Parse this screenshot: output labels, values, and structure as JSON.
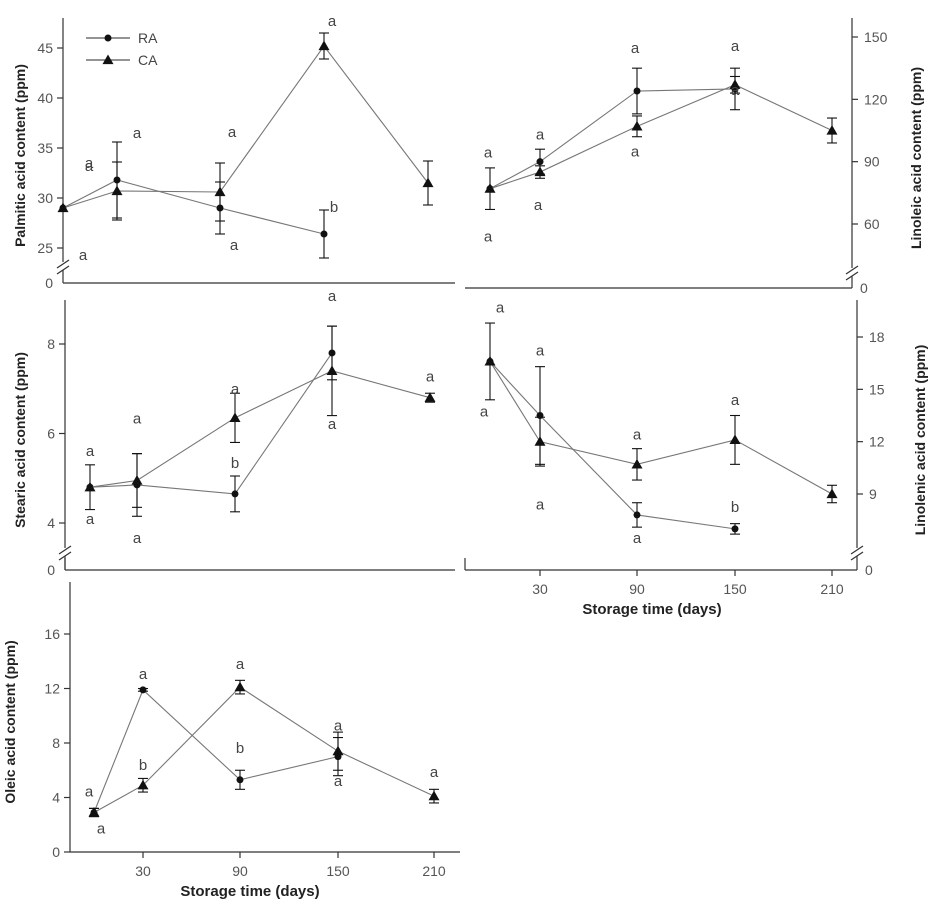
{
  "chart_data": [
    {
      "id": "palmitic",
      "type": "line",
      "ylabel": "Palmitic acid content (ppm)",
      "yaxis_side": "left",
      "ylim": [
        22,
        47
      ],
      "yticks": [
        25,
        30,
        35,
        40,
        45
      ],
      "axis_break": true,
      "zero_label": "0",
      "x": [
        10,
        30,
        90,
        150,
        210
      ],
      "series": [
        {
          "name": "RA",
          "marker": "circle",
          "values": [
            29,
            31.8,
            29,
            26.4,
            null
          ],
          "errors": [
            0,
            3.8,
            2.6,
            2.4,
            null
          ],
          "labels": [
            "a",
            "a",
            "a",
            "b",
            null
          ]
        },
        {
          "name": "CA",
          "marker": "triangle",
          "values": [
            29,
            30.7,
            30.6,
            45.2,
            31.5
          ],
          "errors": [
            0,
            2.9,
            2.9,
            1.3,
            2.2
          ],
          "labels": [
            "a",
            "a",
            "a",
            "a",
            null
          ]
        }
      ]
    },
    {
      "id": "linoleic",
      "type": "line",
      "ylabel": "Linoleic acid content (ppm)",
      "yaxis_side": "right",
      "ylim": [
        47,
        158
      ],
      "yticks": [
        60,
        90,
        120,
        150
      ],
      "axis_break": true,
      "zero_label": "0",
      "x": [
        10,
        30,
        90,
        150,
        210
      ],
      "series": [
        {
          "name": "RA",
          "marker": "circle",
          "values": [
            77,
            90,
            124,
            125,
            null
          ],
          "errors": [
            10,
            6,
            11,
            10,
            null
          ],
          "labels": [
            "a",
            "a",
            "a",
            "a",
            null
          ]
        },
        {
          "name": "CA",
          "marker": "triangle",
          "values": [
            77,
            85,
            107,
            127,
            105
          ],
          "errors": [
            0,
            3,
            5,
            4,
            6
          ],
          "labels": [
            "a",
            "a",
            "a",
            "a",
            null
          ]
        }
      ]
    },
    {
      "id": "stearic",
      "type": "line",
      "ylabel": "Stearic acid content (ppm)",
      "yaxis_side": "left",
      "ylim": [
        3.7,
        8.9
      ],
      "yticks": [
        4,
        6,
        8
      ],
      "axis_break": true,
      "zero_label": "0",
      "x": [
        10,
        30,
        90,
        150,
        210
      ],
      "series": [
        {
          "name": "RA",
          "marker": "circle",
          "values": [
            4.8,
            4.85,
            4.65,
            7.8,
            null
          ],
          "errors": [
            0.5,
            0.7,
            0.4,
            0.6,
            null
          ],
          "labels": [
            "a",
            "a",
            "b",
            "a",
            null
          ]
        },
        {
          "name": "CA",
          "marker": "triangle",
          "values": [
            4.8,
            4.95,
            6.35,
            7.4,
            6.8
          ],
          "errors": [
            0,
            0.6,
            0.55,
            1.0,
            0.1
          ],
          "labels": [
            "a",
            "a",
            "a",
            "a",
            "a"
          ]
        }
      ]
    },
    {
      "id": "linolenic",
      "type": "line",
      "ylabel": "Linolenic acid content (ppm)",
      "yaxis_side": "right",
      "ylim": [
        6.5,
        19.5
      ],
      "yticks": [
        9,
        12,
        15,
        18
      ],
      "axis_break": true,
      "zero_label": "0",
      "x": [
        10,
        30,
        90,
        150,
        210
      ],
      "xticks": [
        30,
        90,
        150,
        210
      ],
      "xlabel": "Storage time (days)",
      "series": [
        {
          "name": "RA",
          "marker": "circle",
          "values": [
            16.6,
            13.5,
            7.8,
            7.0,
            null
          ],
          "errors": [
            2.2,
            2.8,
            0.7,
            0.3,
            null
          ],
          "labels": [
            "a",
            "a",
            "a",
            "b",
            null
          ]
        },
        {
          "name": "CA",
          "marker": "triangle",
          "values": [
            16.6,
            12.0,
            10.7,
            12.1,
            9.0
          ],
          "errors": [
            0,
            1.4,
            0.9,
            1.4,
            0.5
          ],
          "labels": [
            "a",
            "a",
            "a",
            "a",
            null
          ]
        }
      ]
    },
    {
      "id": "oleic",
      "type": "line",
      "ylabel": "Oleic acid content (ppm)",
      "yaxis_side": "left",
      "ylim": [
        0,
        19.5
      ],
      "yticks": [
        0,
        4,
        8,
        12,
        16
      ],
      "axis_break": false,
      "x": [
        10,
        30,
        90,
        150,
        210
      ],
      "xticks": [
        30,
        90,
        150,
        210
      ],
      "xlabel": "Storage time (days)",
      "series": [
        {
          "name": "RA",
          "marker": "circle",
          "values": [
            2.9,
            11.9,
            5.3,
            7.0,
            null
          ],
          "errors": [
            0.3,
            0.1,
            0.7,
            1.4,
            null
          ],
          "labels": [
            "a",
            "a",
            "b",
            "a",
            null
          ]
        },
        {
          "name": "CA",
          "marker": "triangle",
          "values": [
            2.9,
            4.9,
            12.1,
            7.4,
            4.1
          ],
          "errors": [
            0.3,
            0.5,
            0.5,
            1.4,
            0.5
          ],
          "labels": [
            "a",
            "b",
            "a",
            "a",
            "a"
          ]
        }
      ]
    }
  ],
  "legend": [
    {
      "name": "RA",
      "marker": "circle"
    },
    {
      "name": "CA",
      "marker": "triangle"
    }
  ]
}
